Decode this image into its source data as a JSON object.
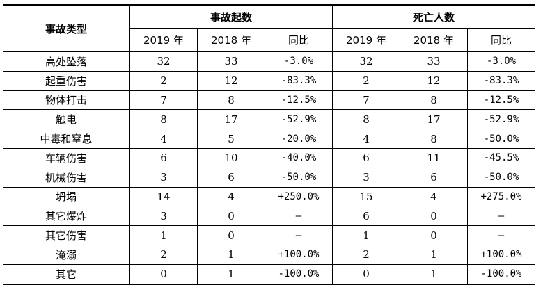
{
  "header": {
    "category": "事故类型",
    "group_accidents": "事故起数",
    "group_deaths": "死亡人数",
    "sub": [
      "2019 年",
      "2018 年",
      "同比",
      "2019 年",
      "2018 年",
      "同比"
    ]
  },
  "rows": [
    {
      "type": "高处坠落",
      "acc2019": "32",
      "acc2018": "33",
      "acc_yoy": "-3.0%",
      "dea2019": "32",
      "dea2018": "33",
      "dea_yoy": "-3.0%"
    },
    {
      "type": "起重伤害",
      "acc2019": "2",
      "acc2018": "12",
      "acc_yoy": "-83.3%",
      "dea2019": "2",
      "dea2018": "12",
      "dea_yoy": "-83.3%"
    },
    {
      "type": "物体打击",
      "acc2019": "7",
      "acc2018": "8",
      "acc_yoy": "-12.5%",
      "dea2019": "7",
      "dea2018": "8",
      "dea_yoy": "-12.5%"
    },
    {
      "type": "触电",
      "acc2019": "8",
      "acc2018": "17",
      "acc_yoy": "-52.9%",
      "dea2019": "8",
      "dea2018": "17",
      "dea_yoy": "-52.9%"
    },
    {
      "type": "中毒和窒息",
      "acc2019": "4",
      "acc2018": "5",
      "acc_yoy": "-20.0%",
      "dea2019": "4",
      "dea2018": "8",
      "dea_yoy": "-50.0%"
    },
    {
      "type": "车辆伤害",
      "acc2019": "6",
      "acc2018": "10",
      "acc_yoy": "-40.0%",
      "dea2019": "6",
      "dea2018": "11",
      "dea_yoy": "-45.5%"
    },
    {
      "type": "机械伤害",
      "acc2019": "3",
      "acc2018": "6",
      "acc_yoy": "-50.0%",
      "dea2019": "3",
      "dea2018": "6",
      "dea_yoy": "-50.0%"
    },
    {
      "type": "坍塌",
      "acc2019": "14",
      "acc2018": "4",
      "acc_yoy": "+250.0%",
      "dea2019": "15",
      "dea2018": "4",
      "dea_yoy": "+275.0%"
    },
    {
      "type": "其它爆炸",
      "acc2019": "3",
      "acc2018": "0",
      "acc_yoy": "–",
      "dea2019": "6",
      "dea2018": "0",
      "dea_yoy": "–"
    },
    {
      "type": "其它伤害",
      "acc2019": "1",
      "acc2018": "0",
      "acc_yoy": "–",
      "dea2019": "1",
      "dea2018": "0",
      "dea_yoy": "–"
    },
    {
      "type": "淹溺",
      "acc2019": "2",
      "acc2018": "1",
      "acc_yoy": "+100.0%",
      "dea2019": "2",
      "dea2018": "1",
      "dea_yoy": "+100.0%"
    },
    {
      "type": "其它",
      "acc2019": "0",
      "acc2018": "1",
      "acc_yoy": "-100.0%",
      "dea2019": "0",
      "dea2018": "1",
      "dea_yoy": "-100.0%"
    }
  ]
}
